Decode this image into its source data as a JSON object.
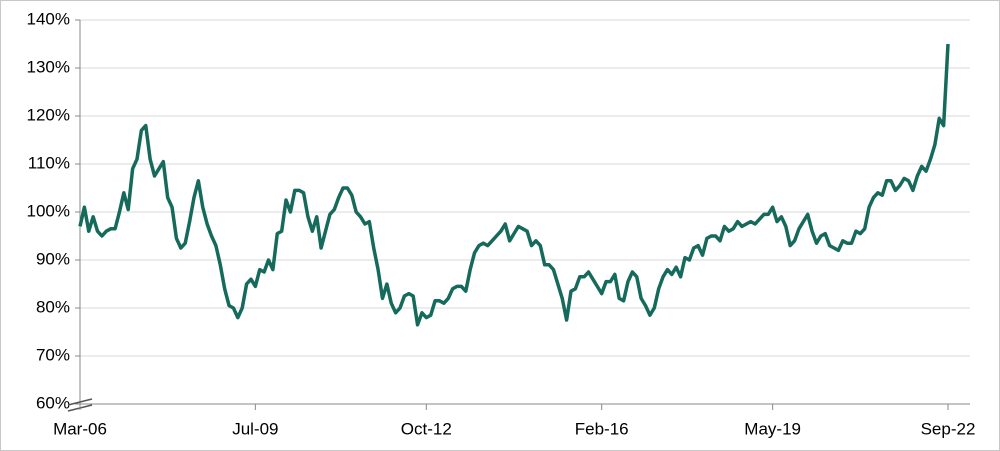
{
  "chart_data": {
    "type": "line",
    "categories": [
      "Mar-06",
      null,
      null,
      null,
      null,
      null,
      null,
      null,
      null,
      null,
      null,
      null,
      null,
      null,
      null,
      null,
      null,
      null,
      null,
      null,
      null,
      null,
      null,
      null,
      null,
      null,
      null,
      null,
      null,
      null,
      null,
      null,
      null,
      null,
      null,
      null,
      null,
      null,
      null,
      null,
      "Jul-09",
      null,
      null,
      null,
      null,
      null,
      null,
      null,
      null,
      null,
      null,
      null,
      null,
      null,
      null,
      null,
      null,
      null,
      null,
      null,
      null,
      null,
      null,
      null,
      null,
      null,
      null,
      null,
      null,
      null,
      null,
      null,
      null,
      null,
      null,
      null,
      null,
      null,
      null,
      "Oct-12",
      null,
      null,
      null,
      null,
      null,
      null,
      null,
      null,
      null,
      null,
      null,
      null,
      null,
      null,
      null,
      null,
      null,
      null,
      null,
      null,
      null,
      null,
      null,
      null,
      null,
      null,
      null,
      null,
      null,
      null,
      null,
      null,
      null,
      null,
      null,
      null,
      null,
      null,
      null,
      "Feb-16",
      null,
      null,
      null,
      null,
      null,
      null,
      null,
      null,
      null,
      null,
      null,
      null,
      null,
      null,
      null,
      null,
      null,
      null,
      null,
      null,
      null,
      null,
      null,
      null,
      null,
      null,
      null,
      null,
      null,
      null,
      null,
      null,
      null,
      null,
      null,
      null,
      null,
      null,
      "May-19",
      null,
      null,
      null,
      null,
      null,
      null,
      null,
      null,
      null,
      null,
      null,
      null,
      null,
      null,
      null,
      null,
      null,
      null,
      null,
      null,
      null,
      null,
      null,
      null,
      null,
      null,
      null,
      null,
      null,
      null,
      null,
      null,
      null,
      null,
      null,
      null,
      null,
      null,
      null,
      "Sep-22"
    ],
    "series": [
      {
        "color": "#156a5c",
        "values": [
          97,
          101,
          96,
          99,
          96,
          95,
          96,
          96.5,
          96.5,
          100,
          104,
          100.5,
          109,
          111,
          117,
          118,
          111,
          107.5,
          109,
          110.5,
          103,
          101,
          94.5,
          92.5,
          93.5,
          98,
          103,
          106.5,
          101,
          97.5,
          95,
          93,
          89,
          84,
          80.5,
          80,
          78,
          80,
          85,
          86,
          84.5,
          88,
          87.5,
          90,
          88,
          95.5,
          96,
          102.5,
          100,
          104.5,
          104.5,
          104,
          99,
          96,
          99,
          92.5,
          96,
          99.5,
          100.5,
          103,
          105,
          105,
          103.5,
          100,
          99,
          97.5,
          98,
          92.5,
          88,
          82,
          85,
          81,
          79,
          80,
          82.5,
          83,
          82.5,
          76.5,
          79,
          78,
          78.5,
          81.5,
          81.5,
          81,
          82,
          84,
          84.5,
          84.5,
          83.5,
          88,
          91.5,
          93,
          93.5,
          93,
          94,
          95,
          96,
          97.5,
          94,
          95.5,
          97,
          96.5,
          96,
          93,
          94,
          93,
          89,
          89,
          88,
          85,
          82,
          77.5,
          83.5,
          84,
          86.5,
          86.5,
          87.5,
          86,
          84.5,
          83,
          85.5,
          85.5,
          87,
          82,
          81.5,
          85.5,
          87.5,
          86.5,
          82,
          80.5,
          78.5,
          80,
          84,
          86.5,
          88,
          87,
          88.5,
          86.5,
          90.5,
          90,
          92.5,
          93,
          91,
          94.5,
          95,
          95,
          94,
          97,
          96,
          96.5,
          98,
          97,
          97.5,
          98,
          97.5,
          98.5,
          99.5,
          99.5,
          101,
          98,
          99,
          97,
          93,
          94,
          96.5,
          98,
          99.5,
          96,
          93.5,
          95,
          95.5,
          93,
          92.5,
          92,
          94,
          93.5,
          93.5,
          96,
          95.5,
          96.5,
          101,
          103,
          104,
          103.5,
          106.5,
          106.5,
          104.5,
          105.5,
          107,
          106.5,
          104.5,
          107.5,
          109.5,
          108.5,
          111,
          114,
          119.5,
          118,
          135
        ]
      }
    ],
    "ylim": [
      60,
      140
    ],
    "yticks": [
      {
        "value": 60,
        "label": "60%"
      },
      {
        "value": 70,
        "label": "70%"
      },
      {
        "value": 80,
        "label": "80%"
      },
      {
        "value": 90,
        "label": "90%"
      },
      {
        "value": 100,
        "label": "100%"
      },
      {
        "value": 110,
        "label": "110%"
      },
      {
        "value": 120,
        "label": "120%"
      },
      {
        "value": 130,
        "label": "130%"
      },
      {
        "value": 140,
        "label": "140%"
      }
    ],
    "grid": true
  }
}
